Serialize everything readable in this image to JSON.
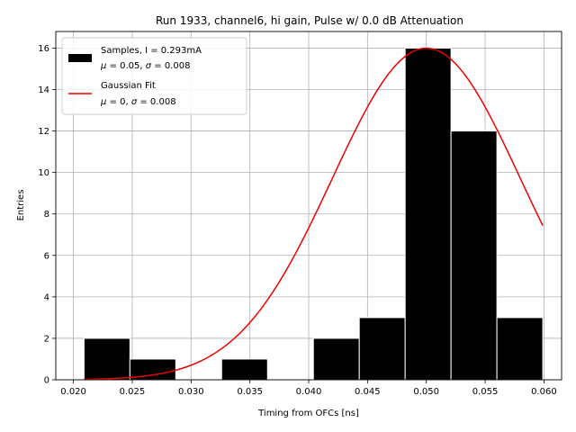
{
  "chart_data": {
    "type": "bar",
    "title": "Run 1933, channel6, hi gain, Pulse w/ 0.0 dB Attenuation",
    "xlabel": "Timing from OFCs [ns]",
    "ylabel": "Entries",
    "xlim": [
      0.0185,
      0.0615
    ],
    "ylim": [
      0,
      16.8
    ],
    "xticks": [
      0.02,
      0.025,
      0.03,
      0.035,
      0.04,
      0.045,
      0.05,
      0.055,
      0.06
    ],
    "xtick_labels": [
      "0.020",
      "0.025",
      "0.030",
      "0.035",
      "0.040",
      "0.045",
      "0.050",
      "0.055",
      "0.060"
    ],
    "yticks": [
      0,
      2,
      4,
      6,
      8,
      10,
      12,
      14,
      16
    ],
    "ytick_labels": [
      "0",
      "2",
      "4",
      "6",
      "8",
      "10",
      "12",
      "14",
      "16"
    ],
    "grid": true,
    "bins": [
      {
        "x0": 0.0209,
        "x1": 0.0248,
        "value": 2
      },
      {
        "x0": 0.0248,
        "x1": 0.0287,
        "value": 1
      },
      {
        "x0": 0.0287,
        "x1": 0.0326,
        "value": 0
      },
      {
        "x0": 0.0326,
        "x1": 0.0365,
        "value": 1
      },
      {
        "x0": 0.0365,
        "x1": 0.0404,
        "value": 0
      },
      {
        "x0": 0.0404,
        "x1": 0.0443,
        "value": 2
      },
      {
        "x0": 0.0443,
        "x1": 0.0482,
        "value": 3
      },
      {
        "x0": 0.0482,
        "x1": 0.0521,
        "value": 16
      },
      {
        "x0": 0.0521,
        "x1": 0.056,
        "value": 12
      },
      {
        "x0": 0.056,
        "x1": 0.0599,
        "value": 3
      }
    ],
    "fit": {
      "mu": 0.05,
      "sigma": 0.008,
      "amplitude": 16,
      "x_start": 0.0209,
      "x_end": 0.0599
    },
    "legend": {
      "placement": "upper-left",
      "entries": [
        {
          "line1": "Samples, I = 0.293mA",
          "line2_parts": [
            "μ",
            " = 0.05, ",
            "σ",
            " = 0.008"
          ]
        },
        {
          "line1": "Gaussian Fit",
          "line2_parts": [
            "μ",
            " = 0, ",
            "σ",
            " = 0.008"
          ]
        }
      ]
    },
    "colors": {
      "bars": "#000000",
      "bar_edges": "#ffffff",
      "fit": "#ee0000",
      "grid": "#b0b0b0"
    }
  }
}
